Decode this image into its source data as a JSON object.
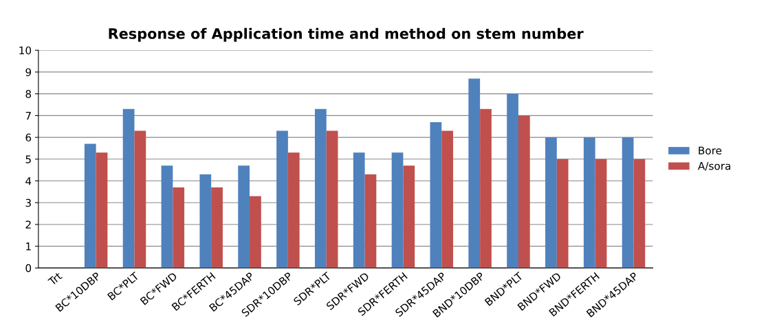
{
  "chart_data": {
    "type": "bar",
    "title": "Response of Application time and method on stem number",
    "categories": [
      "Trt",
      "BC*10DBP",
      "BC*PLT",
      "BC*FWD",
      "BC*FERTH",
      "BC*45DAP",
      "SDR*10DBP",
      "SDR*PLT",
      "SDR*FWD",
      "SDR*FERTH",
      "SDR*45DAP",
      "BND*10DBP",
      "BND*PLT",
      "BND*FWD",
      "BND*FERTH",
      "BND*45DAP"
    ],
    "series": [
      {
        "name": "Bore",
        "color": "#4f81bd",
        "values": [
          null,
          5.7,
          7.3,
          4.7,
          4.3,
          4.7,
          6.3,
          7.3,
          5.3,
          5.3,
          6.7,
          8.7,
          8.0,
          6.0,
          6.0,
          6.0
        ]
      },
      {
        "name": "A/sora",
        "color": "#c0504d",
        "values": [
          null,
          5.3,
          6.3,
          3.7,
          3.7,
          3.3,
          5.3,
          6.3,
          4.3,
          4.7,
          6.3,
          7.3,
          7.0,
          5.0,
          5.0,
          5.0
        ]
      }
    ],
    "ylim": [
      0,
      10
    ],
    "yticks": [
      0,
      1,
      2,
      3,
      4,
      5,
      6,
      7,
      8,
      9,
      10
    ],
    "grid": "y",
    "legend": "right"
  }
}
